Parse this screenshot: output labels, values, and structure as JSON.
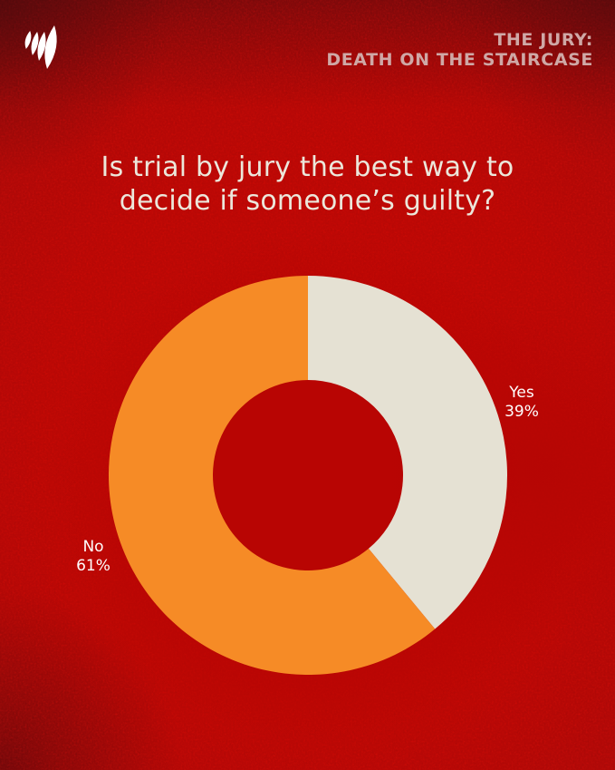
{
  "header": {
    "logo_name": "sbs-logo",
    "show_title_line1": "THE JURY:",
    "show_title_line2": "DEATH ON THE STAIRCASE"
  },
  "question": {
    "line1": "Is trial by jury the best way to",
    "line2": "decide if someone’s guilty?"
  },
  "chart_data": {
    "type": "pie",
    "variant": "donut",
    "title": "Is trial by jury the best way to decide if someone’s guilty?",
    "categories": [
      "Yes",
      "No"
    ],
    "values": [
      39,
      61
    ],
    "slices": [
      {
        "label": "Yes",
        "value": 39,
        "value_label": "39%",
        "color": "#e5e1d3"
      },
      {
        "label": "No",
        "value": 61,
        "value_label": "61%",
        "color": "#f68b26"
      }
    ],
    "start_angle_deg": -90,
    "direction": "clockwise",
    "legend_position": "outside-labels"
  },
  "colors": {
    "background_center": "#b80503",
    "background_edge": "#570d12",
    "yes_slice": "#e5e1d3",
    "no_slice": "#f68b26",
    "title_text": "#ece7db",
    "header_text": "#cfa8a6",
    "label_text": "#ffffff",
    "logo": "#ffffff"
  }
}
